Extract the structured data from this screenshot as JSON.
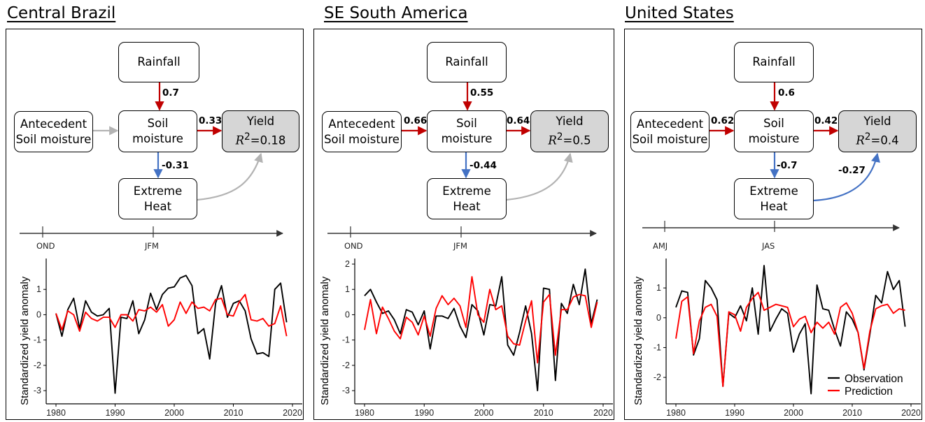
{
  "colors": {
    "red": "#c00000",
    "blue": "#4472c4",
    "grey": "#b3b3b3",
    "observation": "#000000",
    "prediction": "#ff0000"
  },
  "legend": {
    "observation": "Observation",
    "prediction": "Prediction"
  },
  "panels": [
    {
      "title": "Central Brazil",
      "nodes": {
        "rainfall": "Rainfall",
        "antecedent_1": "Antecedent",
        "antecedent_2": "Soil moisture",
        "soil_1": "Soil",
        "soil_2": "moisture",
        "heat_1": "Extreme",
        "heat_2": "Heat",
        "yield_label": "Yield",
        "r2_value": "=0.18"
      },
      "coefficients": {
        "rain_soil": "0.7",
        "ante_soil": "",
        "soil_yield": "0.33",
        "soil_heat": "-0.31",
        "heat_yield": ""
      },
      "arrow_colors": {
        "rain_soil": "red",
        "ante_soil": "grey",
        "soil_yield": "red",
        "soil_heat": "blue",
        "heat_yield": "grey"
      },
      "timeline": {
        "left": "OND",
        "right": "JFM"
      }
    },
    {
      "title": "SE South America",
      "nodes": {
        "rainfall": "Rainfall",
        "antecedent_1": "Antecedent",
        "antecedent_2": "Soil moisture",
        "soil_1": "Soil",
        "soil_2": "moisture",
        "heat_1": "Extreme",
        "heat_2": "Heat",
        "yield_label": "Yield",
        "r2_value": "=0.5"
      },
      "coefficients": {
        "rain_soil": "0.55",
        "ante_soil": "0.66",
        "soil_yield": "0.64",
        "soil_heat": "-0.44",
        "heat_yield": ""
      },
      "arrow_colors": {
        "rain_soil": "red",
        "ante_soil": "red",
        "soil_yield": "red",
        "soil_heat": "blue",
        "heat_yield": "grey"
      },
      "timeline": {
        "left": "OND",
        "right": "JFM"
      }
    },
    {
      "title": "United States",
      "nodes": {
        "rainfall": "Rainfall",
        "antecedent_1": "Antecedent",
        "antecedent_2": "Soil moisture",
        "soil_1": "Soil",
        "soil_2": "moisture",
        "heat_1": "Extreme",
        "heat_2": "Heat",
        "yield_label": "Yield",
        "r2_value": "=0.4"
      },
      "coefficients": {
        "rain_soil": "0.6",
        "ante_soil": "0.62",
        "soil_yield": "0.42",
        "soil_heat": "-0.7",
        "heat_yield": "-0.27"
      },
      "arrow_colors": {
        "rain_soil": "red",
        "ante_soil": "red",
        "soil_yield": "red",
        "soil_heat": "blue",
        "heat_yield": "blue"
      },
      "timeline": {
        "left": "AMJ",
        "right": "JAS"
      }
    }
  ],
  "chart_data": [
    {
      "type": "line",
      "ylabel": "Standardized yield anomaly",
      "xlim": [
        1980,
        2020
      ],
      "ylim": [
        -3.3,
        2.0
      ],
      "xticks": [
        1980,
        1990,
        2000,
        2010,
        2020
      ],
      "yticks": [
        -3,
        -2,
        -1,
        0,
        1
      ],
      "x": [
        1980,
        1981,
        1982,
        1983,
        1984,
        1985,
        1986,
        1987,
        1988,
        1989,
        1990,
        1991,
        1992,
        1993,
        1994,
        1995,
        1996,
        1997,
        1998,
        1999,
        2000,
        2001,
        2002,
        2003,
        2004,
        2005,
        2006,
        2007,
        2008,
        2009,
        2010,
        2011,
        2012,
        2013,
        2014,
        2015,
        2016,
        2017,
        2018,
        2019
      ],
      "series": [
        {
          "name": "Observation",
          "color": "#000000",
          "values": [
            0.05,
            -0.85,
            0.2,
            0.65,
            -0.55,
            0.55,
            0.1,
            -0.05,
            0.0,
            0.25,
            -3.1,
            -0.1,
            -0.15,
            0.55,
            -0.75,
            -0.2,
            0.85,
            0.2,
            0.8,
            1.05,
            1.1,
            1.45,
            1.55,
            1.15,
            -0.75,
            -0.55,
            -1.75,
            0.45,
            1.15,
            -0.1,
            0.45,
            0.55,
            0.15,
            -0.95,
            -1.55,
            -1.5,
            -1.65,
            1.0,
            1.25,
            -0.3
          ]
        },
        {
          "name": "Prediction",
          "color": "#ff0000",
          "values": [
            0.05,
            -0.6,
            0.15,
            0.0,
            -0.65,
            0.1,
            -0.15,
            -0.25,
            -0.1,
            -0.1,
            -0.5,
            0.0,
            0.0,
            -0.25,
            0.2,
            0.15,
            0.3,
            0.1,
            0.4,
            -0.45,
            -0.2,
            0.5,
            0.05,
            0.5,
            0.25,
            0.3,
            0.15,
            0.6,
            0.65,
            0.0,
            -0.05,
            0.5,
            0.8,
            -0.2,
            -0.25,
            -0.15,
            -0.45,
            -0.35,
            0.35,
            -0.85
          ]
        }
      ]
    },
    {
      "type": "line",
      "ylabel": "Standardized yield anomaly",
      "xlim": [
        1980,
        2020
      ],
      "ylim": [
        -3.3,
        2.0
      ],
      "xticks": [
        1980,
        1990,
        2000,
        2010,
        2020
      ],
      "yticks": [
        -3,
        -2,
        -1,
        0,
        1,
        2
      ],
      "x": [
        1980,
        1981,
        1982,
        1983,
        1984,
        1985,
        1986,
        1987,
        1988,
        1989,
        1990,
        1991,
        1992,
        1993,
        1994,
        1995,
        1996,
        1997,
        1998,
        1999,
        2000,
        2001,
        2002,
        2003,
        2004,
        2005,
        2006,
        2007,
        2008,
        2009,
        2010,
        2011,
        2012,
        2013,
        2014,
        2015,
        2016,
        2017,
        2018,
        2019
      ],
      "series": [
        {
          "name": "Observation",
          "color": "#000000",
          "values": [
            0.75,
            1.0,
            0.5,
            0.05,
            0.15,
            -0.2,
            -0.75,
            0.2,
            0.1,
            -0.4,
            0.15,
            -1.35,
            -0.05,
            -0.05,
            -0.15,
            0.25,
            -0.45,
            -0.9,
            0.4,
            0.15,
            -0.8,
            0.4,
            0.35,
            1.5,
            -1.2,
            -1.6,
            -0.7,
            0.35,
            -0.75,
            -3.0,
            1.05,
            1.0,
            -2.6,
            0.45,
            0.05,
            1.2,
            0.4,
            1.8,
            -0.35,
            0.6
          ]
        },
        {
          "name": "Prediction",
          "color": "#ff0000",
          "values": [
            -0.6,
            0.6,
            -0.75,
            0.3,
            -0.15,
            -0.65,
            -0.95,
            -0.1,
            -0.3,
            -0.8,
            -0.05,
            -0.85,
            0.25,
            0.75,
            0.4,
            0.65,
            0.35,
            -0.5,
            1.5,
            0.0,
            -0.3,
            1.0,
            0.2,
            0.35,
            -0.85,
            -1.15,
            -1.2,
            -0.25,
            0.55,
            -1.9,
            0.5,
            0.8,
            -1.6,
            0.2,
            0.2,
            0.7,
            0.8,
            0.75,
            -0.5,
            0.5
          ]
        }
      ]
    },
    {
      "type": "line",
      "ylabel": "Standardized yield anomaly",
      "xlim": [
        1980,
        2020
      ],
      "ylim": [
        -2.7,
        1.8
      ],
      "xticks": [
        1980,
        1990,
        2000,
        2010,
        2020
      ],
      "yticks": [
        -2,
        -1,
        0,
        1
      ],
      "x": [
        1980,
        1981,
        1982,
        1983,
        1984,
        1985,
        1986,
        1987,
        1988,
        1989,
        1990,
        1991,
        1992,
        1993,
        1994,
        1995,
        1996,
        1997,
        1998,
        1999,
        2000,
        2001,
        2002,
        2003,
        2004,
        2005,
        2006,
        2007,
        2008,
        2009,
        2010,
        2011,
        2012,
        2013,
        2014,
        2015,
        2016,
        2017,
        2018,
        2019
      ],
      "series": [
        {
          "name": "Observation",
          "color": "#000000",
          "values": [
            0.35,
            0.9,
            0.85,
            -1.25,
            -0.7,
            1.25,
            1.0,
            0.6,
            -2.3,
            0.15,
            0.0,
            0.4,
            -0.1,
            1.0,
            -0.55,
            1.75,
            -0.45,
            -0.05,
            0.3,
            0.15,
            -1.15,
            -0.55,
            -0.2,
            -2.55,
            1.1,
            0.3,
            0.25,
            -0.4,
            -0.95,
            0.2,
            -0.05,
            -0.5,
            -1.75,
            -0.55,
            0.75,
            0.5,
            1.55,
            0.95,
            1.25,
            -0.3
          ]
        },
        {
          "name": "Prediction",
          "color": "#ff0000",
          "values": [
            -0.7,
            0.55,
            0.7,
            -1.2,
            -0.1,
            0.35,
            0.45,
            0.05,
            -2.3,
            0.2,
            0.1,
            -0.45,
            0.35,
            0.65,
            0.85,
            0.25,
            0.35,
            0.45,
            0.4,
            0.35,
            -0.3,
            -0.05,
            0.05,
            -0.5,
            -0.15,
            -0.35,
            -0.15,
            -0.55,
            0.35,
            0.5,
            0.15,
            -0.5,
            -1.7,
            -0.45,
            0.3,
            0.4,
            0.45,
            0.15,
            0.3,
            0.25
          ]
        }
      ]
    }
  ]
}
